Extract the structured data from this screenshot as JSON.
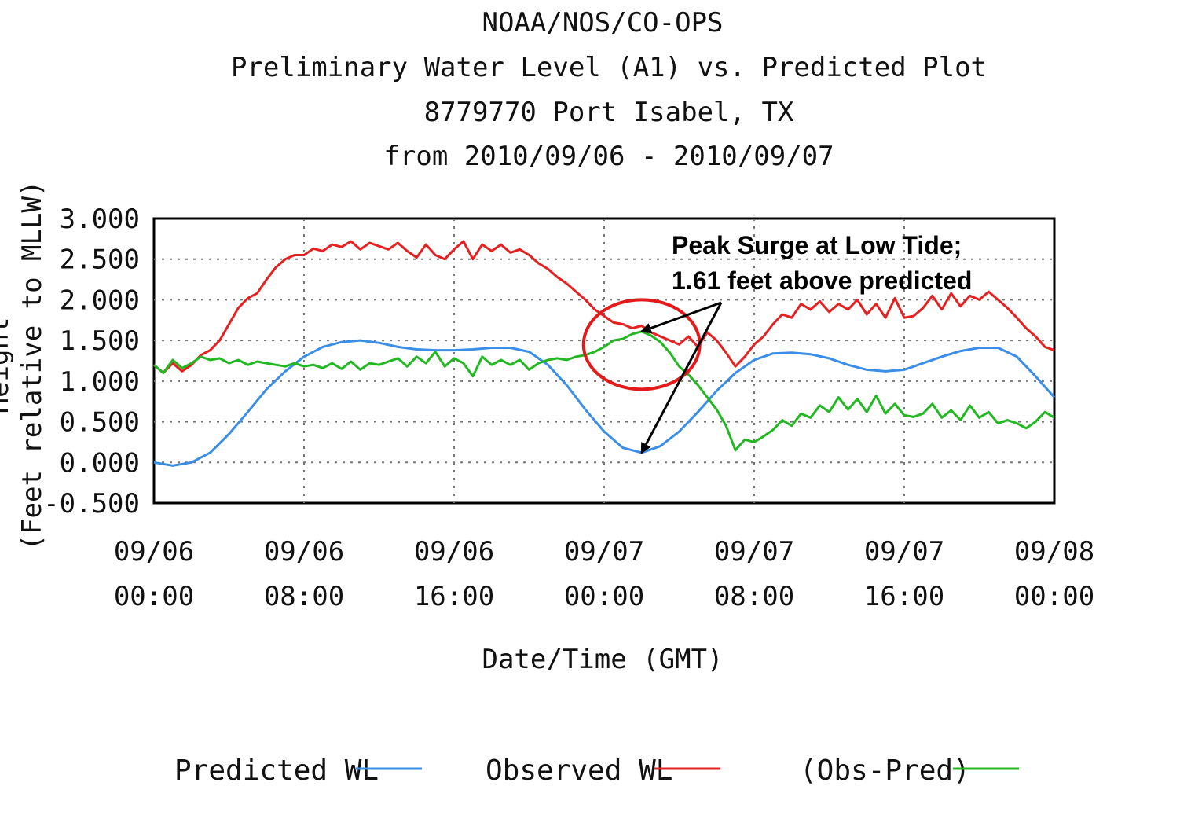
{
  "chart_data": {
    "type": "line",
    "title_lines": [
      "NOAA/NOS/CO-OPS",
      "Preliminary  Water Level (A1) vs. Predicted Plot",
      "8779770 Port Isabel, TX",
      "from 2010/09/06 - 2010/09/07"
    ],
    "xlabel": "Date/Time (GMT)",
    "ylabel_visible": "(Feet relative to MLLW)",
    "ylabel_cut": "Height",
    "xlim": [
      0,
      48
    ],
    "ylim": [
      -0.5,
      3.0
    ],
    "grid": true,
    "y_ticks": [
      "3.000",
      "2.500",
      "2.000",
      "1.500",
      "1.000",
      "0.500",
      "0.000",
      "-0.500"
    ],
    "x_ticks": [
      {
        "x": 0,
        "date": "09/06",
        "time": "00:00"
      },
      {
        "x": 8,
        "date": "09/06",
        "time": "08:00"
      },
      {
        "x": 16,
        "date": "09/06",
        "time": "16:00"
      },
      {
        "x": 24,
        "date": "09/07",
        "time": "00:00"
      },
      {
        "x": 32,
        "date": "09/07",
        "time": "08:00"
      },
      {
        "x": 40,
        "date": "09/07",
        "time": "16:00"
      },
      {
        "x": 48,
        "date": "09/08",
        "time": "00:00"
      }
    ],
    "legend_position": "bottom",
    "series": [
      {
        "name": "Predicted WL",
        "color": "#3a8ee8",
        "points": [
          [
            0,
            0.0
          ],
          [
            1,
            -0.04
          ],
          [
            2,
            0.0
          ],
          [
            3,
            0.12
          ],
          [
            4,
            0.35
          ],
          [
            5,
            0.62
          ],
          [
            6,
            0.9
          ],
          [
            7,
            1.12
          ],
          [
            8,
            1.3
          ],
          [
            9,
            1.42
          ],
          [
            10,
            1.48
          ],
          [
            11,
            1.5
          ],
          [
            12,
            1.47
          ],
          [
            13,
            1.42
          ],
          [
            14,
            1.39
          ],
          [
            15,
            1.38
          ],
          [
            16,
            1.38
          ],
          [
            17,
            1.39
          ],
          [
            18,
            1.41
          ],
          [
            19,
            1.41
          ],
          [
            20,
            1.36
          ],
          [
            21,
            1.2
          ],
          [
            22,
            0.95
          ],
          [
            23,
            0.65
          ],
          [
            24,
            0.38
          ],
          [
            25,
            0.18
          ],
          [
            26,
            0.12
          ],
          [
            27,
            0.2
          ],
          [
            28,
            0.38
          ],
          [
            29,
            0.62
          ],
          [
            30,
            0.88
          ],
          [
            31,
            1.1
          ],
          [
            32,
            1.26
          ],
          [
            33,
            1.34
          ],
          [
            34,
            1.35
          ],
          [
            35,
            1.33
          ],
          [
            36,
            1.28
          ],
          [
            37,
            1.2
          ],
          [
            38,
            1.14
          ],
          [
            39,
            1.12
          ],
          [
            40,
            1.14
          ],
          [
            41,
            1.22
          ],
          [
            42,
            1.3
          ],
          [
            43,
            1.37
          ],
          [
            44,
            1.41
          ],
          [
            45,
            1.41
          ],
          [
            46,
            1.3
          ],
          [
            47,
            1.06
          ],
          [
            48,
            0.8
          ]
        ]
      },
      {
        "name": "Observed WL",
        "color": "#e62020",
        "points": [
          [
            0,
            1.2
          ],
          [
            0.5,
            1.1
          ],
          [
            1,
            1.22
          ],
          [
            1.5,
            1.12
          ],
          [
            2,
            1.2
          ],
          [
            2.5,
            1.32
          ],
          [
            3,
            1.38
          ],
          [
            3.5,
            1.5
          ],
          [
            4,
            1.7
          ],
          [
            4.5,
            1.9
          ],
          [
            5,
            2.02
          ],
          [
            5.5,
            2.08
          ],
          [
            6,
            2.25
          ],
          [
            6.5,
            2.4
          ],
          [
            7,
            2.5
          ],
          [
            7.5,
            2.55
          ],
          [
            8,
            2.55
          ],
          [
            8.5,
            2.63
          ],
          [
            9,
            2.6
          ],
          [
            9.5,
            2.68
          ],
          [
            10,
            2.65
          ],
          [
            10.5,
            2.72
          ],
          [
            11,
            2.62
          ],
          [
            11.5,
            2.7
          ],
          [
            12,
            2.66
          ],
          [
            12.5,
            2.62
          ],
          [
            13,
            2.7
          ],
          [
            13.5,
            2.6
          ],
          [
            14,
            2.52
          ],
          [
            14.5,
            2.68
          ],
          [
            15,
            2.55
          ],
          [
            15.5,
            2.5
          ],
          [
            16,
            2.62
          ],
          [
            16.5,
            2.72
          ],
          [
            17,
            2.5
          ],
          [
            17.5,
            2.68
          ],
          [
            18,
            2.6
          ],
          [
            18.5,
            2.68
          ],
          [
            19,
            2.58
          ],
          [
            19.5,
            2.62
          ],
          [
            20,
            2.55
          ],
          [
            20.5,
            2.45
          ],
          [
            21,
            2.38
          ],
          [
            21.5,
            2.28
          ],
          [
            22,
            2.2
          ],
          [
            22.5,
            2.1
          ],
          [
            23,
            2.0
          ],
          [
            23.5,
            1.88
          ],
          [
            24,
            1.8
          ],
          [
            24.5,
            1.72
          ],
          [
            25,
            1.7
          ],
          [
            25.5,
            1.65
          ],
          [
            26,
            1.68
          ],
          [
            26.5,
            1.6
          ],
          [
            27,
            1.55
          ],
          [
            27.5,
            1.5
          ],
          [
            28,
            1.45
          ],
          [
            28.5,
            1.55
          ],
          [
            29,
            1.42
          ],
          [
            29.5,
            1.6
          ],
          [
            30,
            1.5
          ],
          [
            30.5,
            1.35
          ],
          [
            31,
            1.18
          ],
          [
            31.5,
            1.3
          ],
          [
            32,
            1.45
          ],
          [
            32.5,
            1.55
          ],
          [
            33,
            1.7
          ],
          [
            33.5,
            1.82
          ],
          [
            34,
            1.78
          ],
          [
            34.5,
            1.95
          ],
          [
            35,
            1.88
          ],
          [
            35.5,
            1.98
          ],
          [
            36,
            1.85
          ],
          [
            36.5,
            1.95
          ],
          [
            37,
            1.88
          ],
          [
            37.5,
            2.0
          ],
          [
            38,
            1.82
          ],
          [
            38.5,
            1.95
          ],
          [
            39,
            1.78
          ],
          [
            39.5,
            2.02
          ],
          [
            40,
            1.78
          ],
          [
            40.5,
            1.8
          ],
          [
            41,
            1.9
          ],
          [
            41.5,
            2.05
          ],
          [
            42,
            1.88
          ],
          [
            42.5,
            2.08
          ],
          [
            43,
            1.92
          ],
          [
            43.5,
            2.05
          ],
          [
            44,
            2.0
          ],
          [
            44.5,
            2.1
          ],
          [
            45,
            2.0
          ],
          [
            45.5,
            1.9
          ],
          [
            46,
            1.78
          ],
          [
            46.5,
            1.65
          ],
          [
            47,
            1.55
          ],
          [
            47.5,
            1.42
          ],
          [
            48,
            1.38
          ]
        ]
      },
      {
        "name": "(Obs-Pred)",
        "color": "#22b822",
        "points": [
          [
            0,
            1.2
          ],
          [
            0.5,
            1.1
          ],
          [
            1,
            1.26
          ],
          [
            1.5,
            1.16
          ],
          [
            2,
            1.22
          ],
          [
            2.5,
            1.3
          ],
          [
            3,
            1.26
          ],
          [
            3.5,
            1.28
          ],
          [
            4,
            1.22
          ],
          [
            4.5,
            1.26
          ],
          [
            5,
            1.2
          ],
          [
            5.5,
            1.24
          ],
          [
            6,
            1.22
          ],
          [
            6.5,
            1.2
          ],
          [
            7,
            1.18
          ],
          [
            7.5,
            1.22
          ],
          [
            8,
            1.18
          ],
          [
            8.5,
            1.2
          ],
          [
            9,
            1.16
          ],
          [
            9.5,
            1.22
          ],
          [
            10,
            1.15
          ],
          [
            10.5,
            1.24
          ],
          [
            11,
            1.14
          ],
          [
            11.5,
            1.22
          ],
          [
            12,
            1.2
          ],
          [
            12.5,
            1.24
          ],
          [
            13,
            1.28
          ],
          [
            13.5,
            1.18
          ],
          [
            14,
            1.3
          ],
          [
            14.5,
            1.22
          ],
          [
            15,
            1.36
          ],
          [
            15.5,
            1.18
          ],
          [
            16,
            1.28
          ],
          [
            16.5,
            1.22
          ],
          [
            17,
            1.06
          ],
          [
            17.5,
            1.3
          ],
          [
            18,
            1.2
          ],
          [
            18.5,
            1.26
          ],
          [
            19,
            1.2
          ],
          [
            19.5,
            1.26
          ],
          [
            20,
            1.14
          ],
          [
            20.5,
            1.22
          ],
          [
            21,
            1.26
          ],
          [
            21.5,
            1.28
          ],
          [
            22,
            1.26
          ],
          [
            22.5,
            1.3
          ],
          [
            23,
            1.32
          ],
          [
            23.5,
            1.36
          ],
          [
            24,
            1.42
          ],
          [
            24.5,
            1.5
          ],
          [
            25,
            1.52
          ],
          [
            25.5,
            1.58
          ],
          [
            26,
            1.61
          ],
          [
            26.5,
            1.56
          ],
          [
            27,
            1.48
          ],
          [
            27.5,
            1.35
          ],
          [
            28,
            1.18
          ],
          [
            28.5,
            1.08
          ],
          [
            29,
            0.95
          ],
          [
            29.5,
            0.8
          ],
          [
            30,
            0.65
          ],
          [
            30.5,
            0.45
          ],
          [
            31,
            0.15
          ],
          [
            31.5,
            0.28
          ],
          [
            32,
            0.25
          ],
          [
            32.5,
            0.32
          ],
          [
            33,
            0.4
          ],
          [
            33.5,
            0.52
          ],
          [
            34,
            0.45
          ],
          [
            34.5,
            0.6
          ],
          [
            35,
            0.55
          ],
          [
            35.5,
            0.7
          ],
          [
            36,
            0.62
          ],
          [
            36.5,
            0.8
          ],
          [
            37,
            0.65
          ],
          [
            37.5,
            0.78
          ],
          [
            38,
            0.62
          ],
          [
            38.5,
            0.82
          ],
          [
            39,
            0.6
          ],
          [
            39.5,
            0.72
          ],
          [
            40,
            0.58
          ],
          [
            40.5,
            0.56
          ],
          [
            41,
            0.6
          ],
          [
            41.5,
            0.72
          ],
          [
            42,
            0.55
          ],
          [
            42.5,
            0.64
          ],
          [
            43,
            0.52
          ],
          [
            43.5,
            0.7
          ],
          [
            44,
            0.55
          ],
          [
            44.5,
            0.62
          ],
          [
            45,
            0.48
          ],
          [
            45.5,
            0.52
          ],
          [
            46,
            0.48
          ],
          [
            46.5,
            0.42
          ],
          [
            47,
            0.5
          ],
          [
            47.5,
            0.62
          ],
          [
            48,
            0.55
          ]
        ]
      }
    ],
    "annotation": {
      "lines": [
        "Peak Surge at Low Tide;",
        "1.61 feet above predicted"
      ],
      "circle_center": [
        26,
        1.45
      ],
      "arrow_targets": [
        [
          26,
          1.61
        ],
        [
          26,
          0.12
        ]
      ]
    }
  }
}
